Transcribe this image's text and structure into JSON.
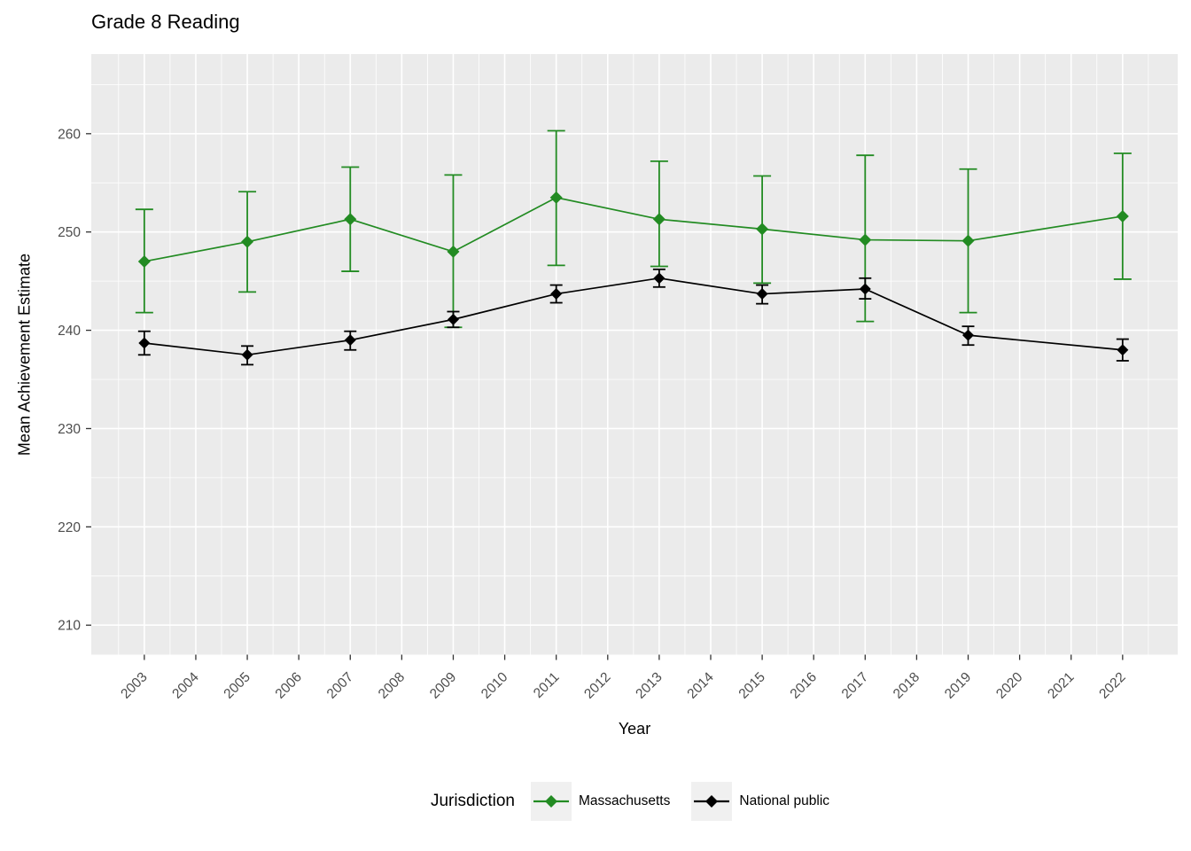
{
  "chart_data": {
    "type": "line",
    "title": "Grade 8 Reading",
    "xlabel": "Year",
    "ylabel": "Mean Achievement Estimate",
    "legend_title": "Jurisdiction",
    "legend_position": "bottom",
    "grid": true,
    "panel_bg": "#EBEBEB",
    "grid_color": "#FFFFFF",
    "axis_text_color": "#4D4D4D",
    "tick_mark_color": "#333333",
    "xlim": [
      2001.97,
      2023.07
    ],
    "ylim": [
      207.0,
      268.1
    ],
    "x_ticks": [
      2003,
      2004,
      2005,
      2006,
      2007,
      2008,
      2009,
      2010,
      2011,
      2012,
      2013,
      2014,
      2015,
      2016,
      2017,
      2018,
      2019,
      2020,
      2021,
      2022
    ],
    "y_ticks": [
      210,
      220,
      230,
      240,
      250,
      260
    ],
    "y_minor_ticks": [
      215,
      225,
      235,
      245,
      255,
      265
    ],
    "marker": "diamond",
    "error_bars": true,
    "x": [
      2003,
      2005,
      2007,
      2009,
      2011,
      2013,
      2015,
      2017,
      2019,
      2022
    ],
    "series": [
      {
        "name": "Massachusetts",
        "color": "#228B22",
        "values": [
          247.0,
          249.0,
          251.3,
          248.0,
          253.5,
          251.3,
          250.3,
          249.2,
          249.1,
          251.6
        ],
        "lower": [
          241.8,
          243.9,
          246.0,
          240.3,
          246.6,
          246.5,
          244.8,
          240.9,
          241.8,
          245.2
        ],
        "upper": [
          252.3,
          254.1,
          256.6,
          255.8,
          260.3,
          257.2,
          255.7,
          257.8,
          256.4,
          258.0
        ]
      },
      {
        "name": "National public",
        "color": "#000000",
        "values": [
          238.7,
          237.5,
          239.0,
          241.1,
          243.7,
          245.3,
          243.7,
          244.2,
          239.5,
          238.0
        ],
        "lower": [
          237.5,
          236.5,
          238.0,
          240.3,
          242.8,
          244.4,
          242.7,
          243.2,
          238.5,
          236.9
        ],
        "upper": [
          239.9,
          238.4,
          239.9,
          241.9,
          244.6,
          246.2,
          244.6,
          245.3,
          240.4,
          239.1
        ]
      }
    ]
  }
}
